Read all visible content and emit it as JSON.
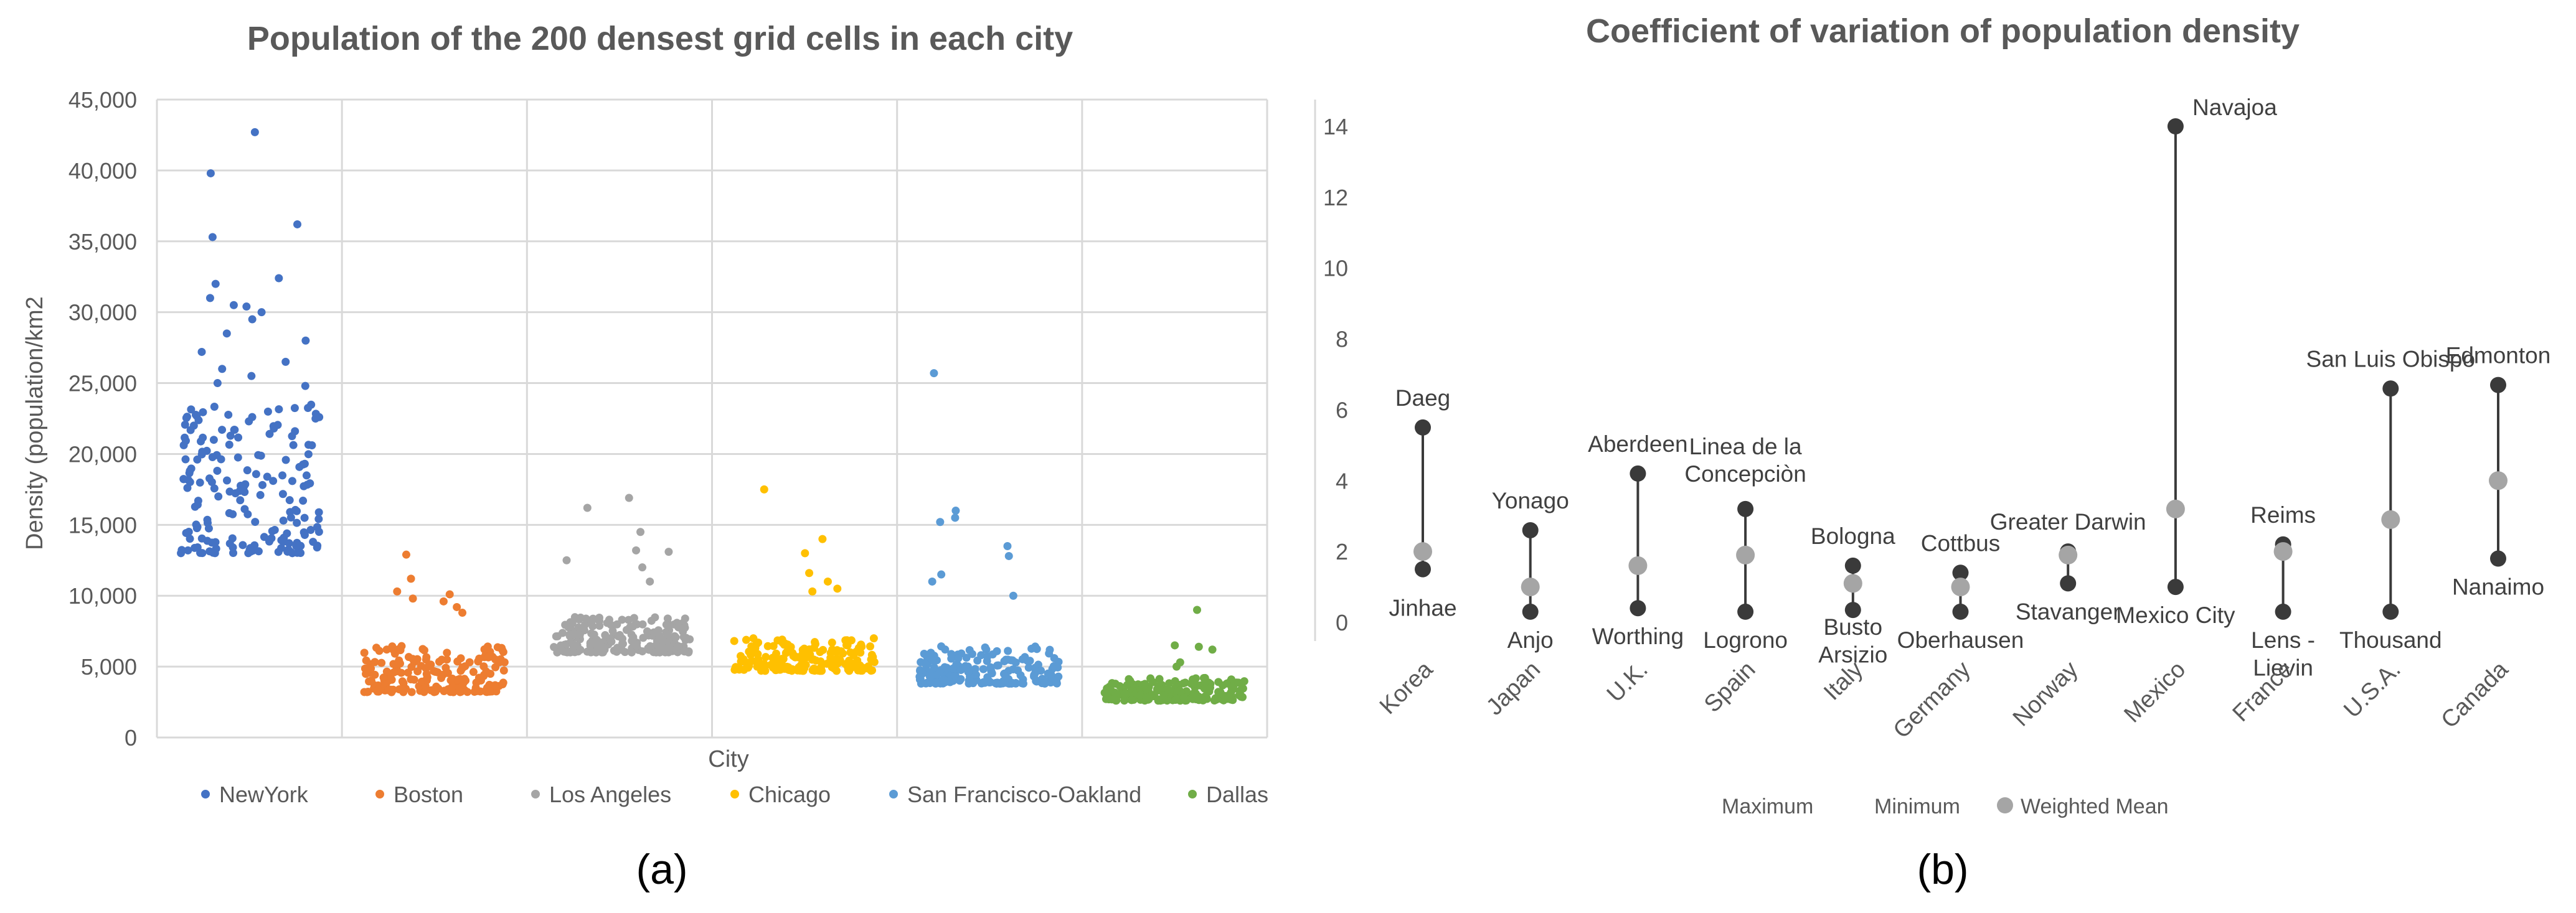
{
  "panel_labels": {
    "a": "(a)",
    "b": "(b)"
  },
  "colors": {
    "NewYork": "#4472c4",
    "Boston": "#ed7d31",
    "Los Angeles": "#a5a5a5",
    "Chicago": "#ffc000",
    "San Francisco-Oakland": "#5b9bd5",
    "Dallas": "#70ad47",
    "maxmin": "#3a3a3a",
    "mean": "#a5a5a5",
    "grid": "#d9d9d9",
    "title": "#595959"
  },
  "chart_data": [
    {
      "type": "scatter",
      "title": "Population of the 200 densest grid cells in each city",
      "xlabel": "City",
      "ylabel": "Density (population/km2",
      "ylim": [
        0,
        45000
      ],
      "y_ticks": [
        "0",
        "5,000",
        "10,000",
        "15,000",
        "20,000",
        "25,000",
        "30,000",
        "35,000",
        "40,000",
        "45,000"
      ],
      "legend_position": "bottom",
      "series": [
        {
          "name": "NewYork",
          "points": 200,
          "range": [
            13000,
            23500
          ],
          "outliers": [
            42700,
            39800,
            36200,
            35300,
            32400,
            32000,
            31000,
            30500,
            30400,
            30000,
            29500,
            28500,
            28000,
            27200,
            26500,
            26000,
            25500,
            25000,
            24800
          ]
        },
        {
          "name": "Boston",
          "points": 200,
          "range": [
            3200,
            6500
          ],
          "outliers": [
            12900,
            11200,
            10300,
            10100,
            9800,
            9600,
            9200,
            8800
          ]
        },
        {
          "name": "Los Angeles",
          "points": 200,
          "range": [
            6000,
            8500
          ],
          "outliers": [
            16900,
            16200,
            14500,
            13200,
            13100,
            12500,
            12000,
            11000
          ]
        },
        {
          "name": "Chicago",
          "points": 200,
          "range": [
            4700,
            7000
          ],
          "outliers": [
            17500,
            14000,
            13000,
            11600,
            11000,
            10500,
            10300
          ]
        },
        {
          "name": "San Francisco-Oakland",
          "points": 200,
          "range": [
            3800,
            6500
          ],
          "outliers": [
            25700,
            16000,
            15500,
            15200,
            13500,
            12800,
            11500,
            11000,
            10000
          ]
        },
        {
          "name": "Dallas",
          "points": 200,
          "range": [
            2600,
            4200
          ],
          "outliers": [
            9000,
            6500,
            6400,
            6200,
            5300,
            5000
          ]
        }
      ]
    },
    {
      "type": "dot-range",
      "title": "Coefficient of variation of population density",
      "ylim": [
        0,
        14
      ],
      "y_ticks": [
        "0",
        "2",
        "4",
        "6",
        "8",
        "10",
        "12",
        "14"
      ],
      "legend": [
        "Maximum",
        "Minimum",
        "Weighted Mean"
      ],
      "legend_position": "bottom",
      "categories": [
        {
          "country": "Korea",
          "max": 5.5,
          "min": 1.5,
          "mean": 2.0,
          "max_city": "Daeg",
          "min_city": "Jinhae"
        },
        {
          "country": "Japan",
          "max": 2.6,
          "min": 0.3,
          "mean": 1.0,
          "max_city": "Yonago",
          "min_city": "Anjo"
        },
        {
          "country": "U.K.",
          "max": 4.2,
          "min": 0.4,
          "mean": 1.6,
          "max_city": "Aberdeen",
          "min_city": "Worthing"
        },
        {
          "country": "Spain",
          "max": 3.2,
          "min": 0.3,
          "mean": 1.9,
          "max_city": "Linea de la Concepciòn",
          "min_city": "Logrono"
        },
        {
          "country": "Italy",
          "max": 1.6,
          "min": 0.35,
          "mean": 1.1,
          "max_city": "Bologna",
          "min_city": "Busto Arsizio"
        },
        {
          "country": "Germany",
          "max": 1.4,
          "min": 0.3,
          "mean": 1.0,
          "max_city": "Cottbus",
          "min_city": "Oberhausen"
        },
        {
          "country": "Norway",
          "max": 2.0,
          "min": 1.1,
          "mean": 1.9,
          "max_city": "Greater Darwin",
          "min_city": "Stavanger"
        },
        {
          "country": "Mexico",
          "max": 14.0,
          "min": 1.0,
          "mean": 3.2,
          "max_city": "Navajoa",
          "min_city": "Mexico City"
        },
        {
          "country": "France",
          "max": 2.2,
          "min": 0.3,
          "mean": 2.0,
          "max_city": "Reims",
          "min_city": "Lens - Lievin"
        },
        {
          "country": "U.S.A.",
          "max": 6.6,
          "min": 0.3,
          "mean": 2.9,
          "max_city": "San Luis Obispo",
          "min_city": "Thousand"
        },
        {
          "country": "Canada",
          "max": 6.7,
          "min": 1.8,
          "mean": 4.0,
          "max_city": "Edmonton",
          "min_city": "Nanaimo"
        }
      ]
    }
  ]
}
